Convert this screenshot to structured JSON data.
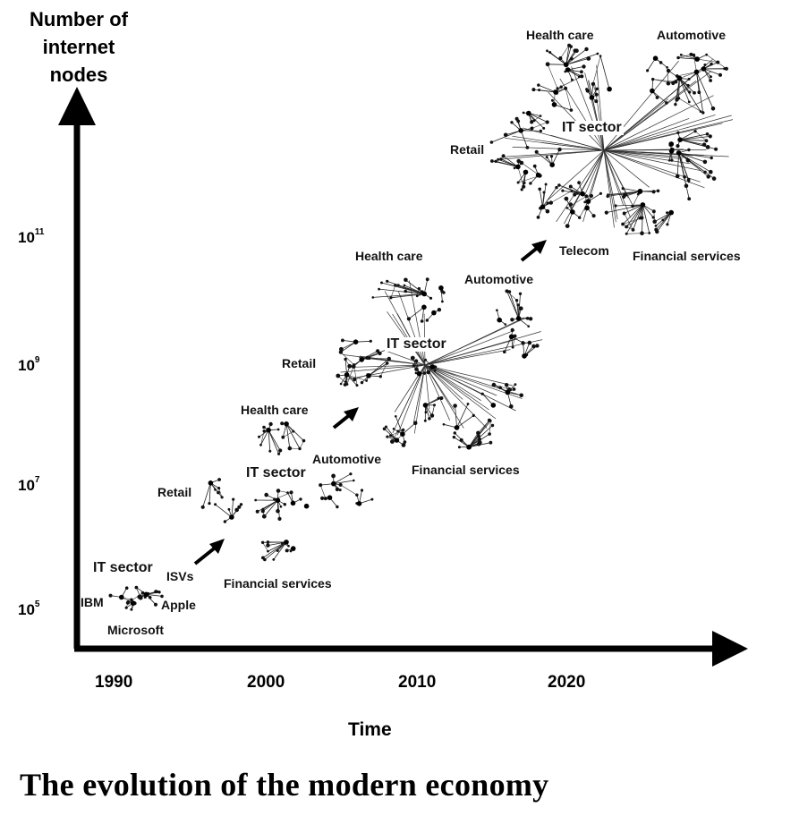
{
  "y_axis": {
    "title": "Number of internet nodes",
    "ticks": [
      {
        "base": "10",
        "exp": "5"
      },
      {
        "base": "10",
        "exp": "7"
      },
      {
        "base": "10",
        "exp": "9"
      },
      {
        "base": "10",
        "exp": "11"
      }
    ]
  },
  "x_axis": {
    "title": "Time",
    "ticks": [
      "1990",
      "2000",
      "2010",
      "2020"
    ]
  },
  "eras": {
    "e1990": {
      "hub": "IT sector",
      "nodes": {
        "isvs": "ISVs",
        "ibm": "IBM",
        "apple": "Apple",
        "microsoft": "Microsoft"
      }
    },
    "e2000": {
      "hub": "IT sector",
      "nodes": {
        "retail": "Retail",
        "health_care": "Health care",
        "automotive": "Automotive",
        "financial_services": "Financial services"
      }
    },
    "e2010": {
      "hub": "IT sector",
      "nodes": {
        "retail": "Retail",
        "health_care": "Health care",
        "automotive": "Automotive",
        "financial_services": "Financial services"
      }
    },
    "e2020": {
      "hub": "IT sector",
      "nodes": {
        "retail": "Retail",
        "health_care": "Health care",
        "automotive": "Automotive",
        "telecom": "Telecom",
        "financial_services": "Financial services"
      }
    }
  },
  "caption": "The evolution of the modern economy"
}
